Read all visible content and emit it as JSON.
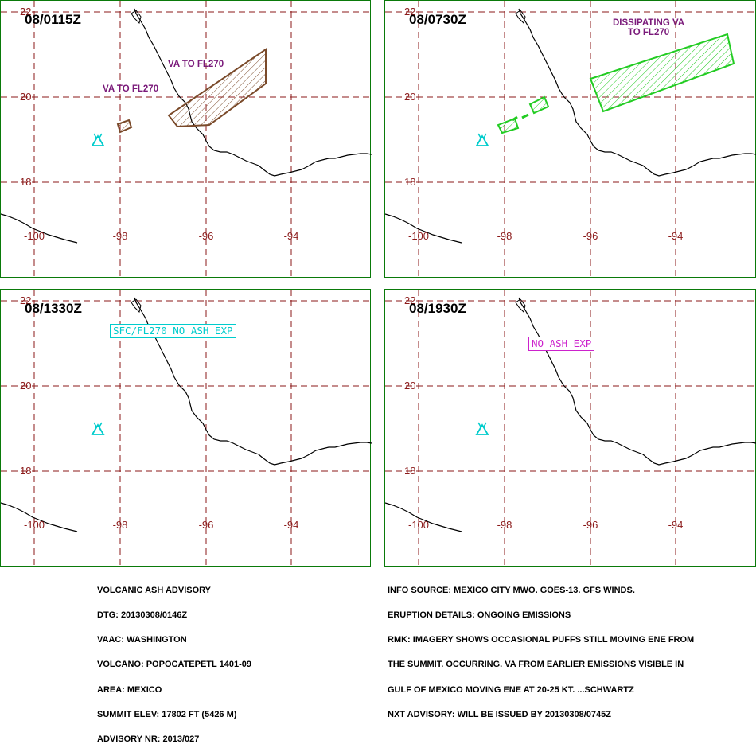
{
  "panels": [
    {
      "time": "08/0115Z",
      "notes": [
        "VA TO FL270",
        "VA TO FL270"
      ]
    },
    {
      "time": "08/0730Z",
      "notes": [
        "DISSIPATING VA",
        "TO FL270"
      ]
    },
    {
      "time": "08/1330Z",
      "notes": [
        "SFC/FL270 NO ASH EXP"
      ]
    },
    {
      "time": "08/1930Z",
      "notes": [
        "NO ASH EXP"
      ]
    }
  ],
  "axes": {
    "lat_labels": [
      "22",
      "20",
      "18"
    ],
    "lon_labels": [
      "-100",
      "-98",
      "-96",
      "-94"
    ]
  },
  "colors": {
    "frame": "#0a7a0a",
    "grid": "#8b1a1a",
    "ash_0115": "#7a4a2a",
    "ash_0730": "#22cc22",
    "volcano": "#00cccc",
    "note_text": "#7a1a7a",
    "no_ash_sfc": "#00cccc",
    "no_ash_1930": "#cc22cc"
  },
  "icons": {
    "volcano": "volcano-triangle-icon"
  },
  "advisory_left": [
    "VOLCANIC ASH ADVISORY",
    "DTG: 20130308/0146Z",
    "VAAC: WASHINGTON",
    "VOLCANO: POPOCATEPETL 1401-09",
    "AREA: MEXICO",
    "SUMMIT ELEV: 17802 FT (5426 M)",
    "ADVISORY NR: 2013/027"
  ],
  "advisory_right": [
    "INFO SOURCE: MEXICO CITY MWO. GOES-13. GFS WINDS.",
    "ERUPTION DETAILS: ONGOING EMISSIONS",
    "RMK: IMAGERY SHOWS OCCASIONAL PUFFS STILL MOVING ENE FROM",
    "THE SUMMIT. OCCURRING. VA FROM EARLIER EMISSIONS VISIBLE IN",
    "GULF OF MEXICO MOVING ENE AT 20-25 KT. ...SCHWARTZ",
    "NXT ADVISORY: WILL BE ISSUED BY 20130308/0745Z"
  ]
}
